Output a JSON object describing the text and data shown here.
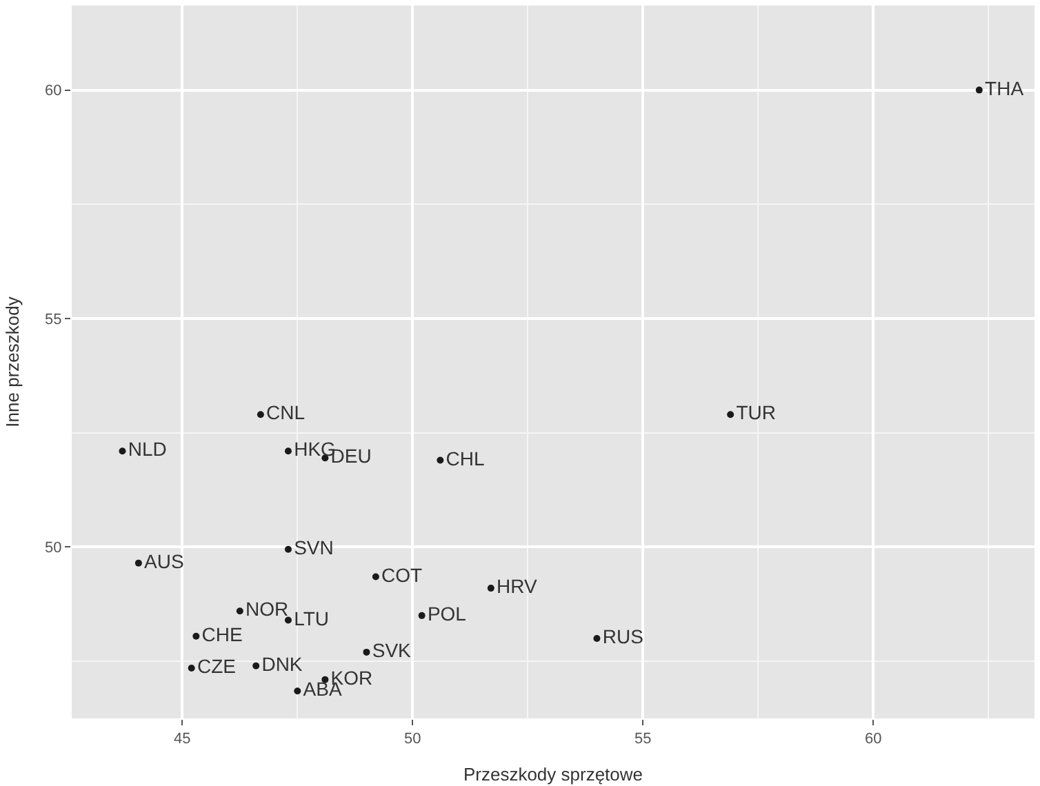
{
  "chart_data": {
    "type": "scatter",
    "xlabel": "Przeszkody sprzętowe",
    "ylabel": "Inne przeszkody",
    "x": [
      62.3,
      56.9,
      43.7,
      46.7,
      47.3,
      48.1,
      50.6,
      47.3,
      44.05,
      49.2,
      51.7,
      46.25,
      47.3,
      50.2,
      45.3,
      54.0,
      49.0,
      45.2,
      46.6,
      48.1,
      47.5
    ],
    "series": [
      {
        "color": "#1a1a1a",
        "values": [
          60.0,
          52.9,
          52.1,
          52.9,
          52.1,
          51.95,
          51.9,
          49.95,
          49.65,
          49.35,
          49.1,
          48.6,
          48.4,
          48.5,
          48.05,
          48.0,
          47.7,
          47.35,
          47.4,
          47.1,
          46.85
        ],
        "value_labels": [
          "THA",
          "TUR",
          "NLD",
          "CNL",
          "HKG",
          "DEU",
          "CHL",
          "SVN",
          "AUS",
          "COT",
          "HRV",
          "NOR",
          "LTU",
          "POL",
          "CHE",
          "RUS",
          "SVK",
          "CZE",
          "DNK",
          "KOR",
          "ABA"
        ]
      }
    ],
    "xlim": [
      42.6,
      63.5
    ],
    "ylim": [
      46.25,
      61.85
    ],
    "xticks": [
      45,
      50,
      55,
      60
    ],
    "yticks": [
      50,
      55,
      60
    ],
    "grid": true,
    "marker": "circle",
    "legend": false
  }
}
